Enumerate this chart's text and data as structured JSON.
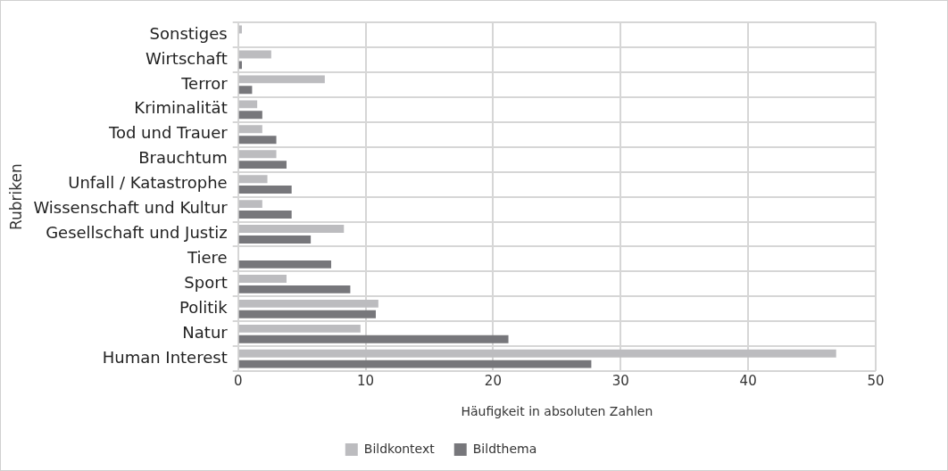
{
  "chart_data": {
    "type": "bar",
    "orientation": "horizontal",
    "categories": [
      "Sonstiges",
      "Wirtschaft",
      "Terror",
      "Kriminalität",
      "Tod und Trauer",
      "Brauchtum",
      "Unfall / Katastrophe",
      "Wissenschaft und Kultur",
      "Gesellschaft und Justiz",
      "Tiere",
      "Sport",
      "Politik",
      "Natur",
      "Human Interest"
    ],
    "series": [
      {
        "name": "Bildkontext",
        "color": "#bcbcbf",
        "values": [
          0.3,
          2.6,
          6.8,
          1.5,
          1.9,
          3.0,
          2.3,
          1.9,
          8.3,
          0,
          3.8,
          11.0,
          9.6,
          46.9
        ]
      },
      {
        "name": "Bildthema",
        "color": "#77777b",
        "values": [
          0,
          0.3,
          1.1,
          1.9,
          3.0,
          3.8,
          4.2,
          4.2,
          5.7,
          7.3,
          8.8,
          10.8,
          21.2,
          27.7
        ]
      }
    ],
    "xlabel": "Häufigkeit in absoluten Zahlen",
    "ylabel": "Rubriken",
    "xlim": [
      0,
      50
    ],
    "xticks": [
      0,
      10,
      20,
      30,
      40,
      50
    ],
    "grid": true,
    "legend": "bottom"
  }
}
